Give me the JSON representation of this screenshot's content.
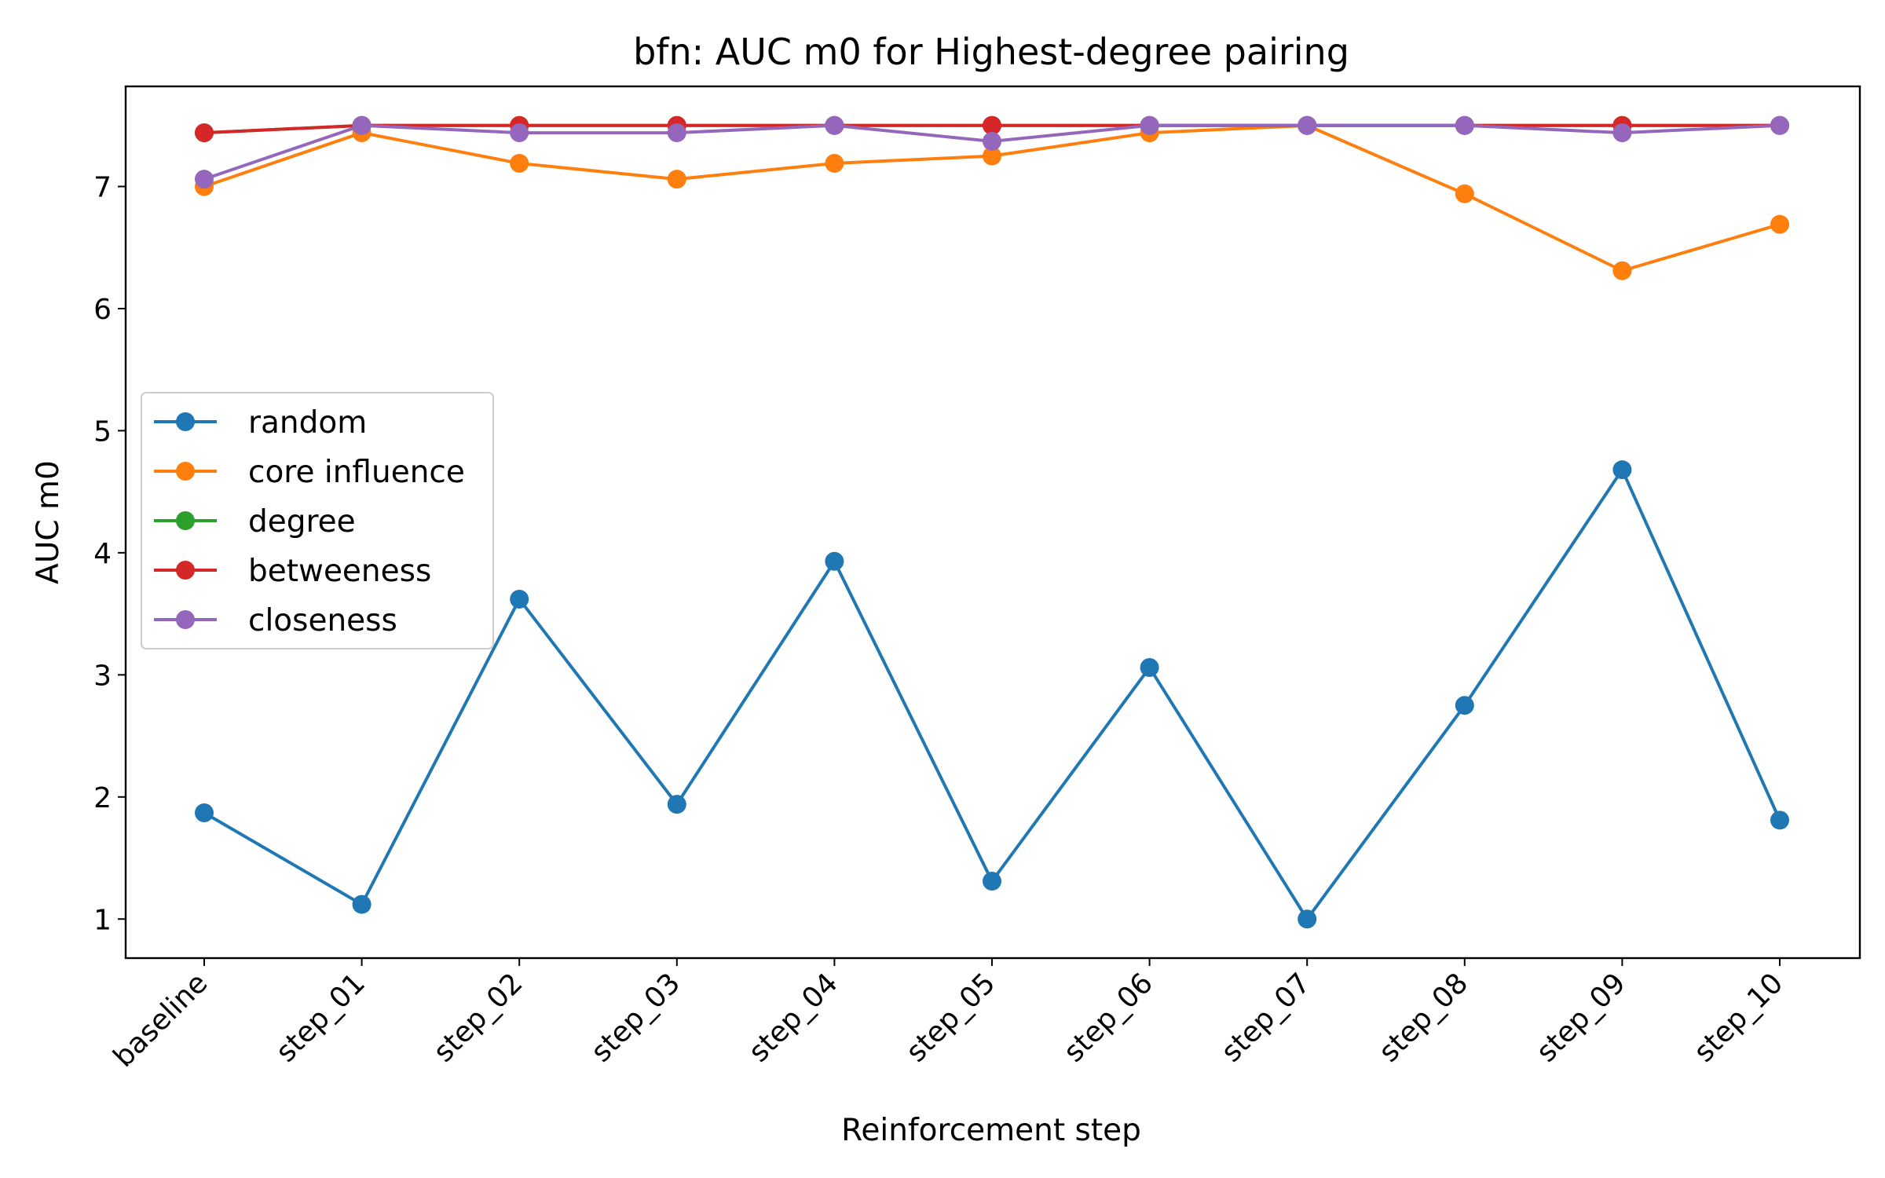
{
  "chart_data": {
    "type": "line",
    "title": "bfn: AUC m0 for Highest-degree pairing",
    "xlabel": "Reinforcement step",
    "ylabel": "AUC m0",
    "categories": [
      "baseline",
      "step_01",
      "step_02",
      "step_03",
      "step_04",
      "step_05",
      "step_06",
      "step_07",
      "step_08",
      "step_09",
      "step_10"
    ],
    "yticks": [
      "1",
      "2",
      "3",
      "4",
      "5",
      "6",
      "7"
    ],
    "ylim": [
      0.68,
      7.82
    ],
    "grid": false,
    "legend_position": "center-left",
    "series": [
      {
        "name": "random",
        "color": "#1f77b4",
        "values": [
          1.87,
          1.12,
          3.62,
          1.94,
          3.93,
          1.31,
          3.06,
          1.0,
          2.75,
          4.68,
          1.81
        ]
      },
      {
        "name": "core influence",
        "color": "#ff7f0e",
        "values": [
          7.0,
          7.44,
          7.19,
          7.06,
          7.19,
          7.25,
          7.44,
          7.5,
          6.94,
          6.31,
          6.69
        ]
      },
      {
        "name": "degree",
        "color": "#2ca02c",
        "values": [
          7.44,
          7.5,
          7.5,
          7.5,
          7.5,
          7.5,
          7.5,
          7.5,
          7.5,
          7.5,
          7.5
        ]
      },
      {
        "name": "betweeness",
        "color": "#d62728",
        "values": [
          7.44,
          7.5,
          7.5,
          7.5,
          7.5,
          7.5,
          7.5,
          7.5,
          7.5,
          7.5,
          7.5
        ]
      },
      {
        "name": "closeness",
        "color": "#9467bd",
        "values": [
          7.06,
          7.5,
          7.44,
          7.44,
          7.5,
          7.37,
          7.5,
          7.5,
          7.5,
          7.44,
          7.5
        ]
      }
    ]
  }
}
